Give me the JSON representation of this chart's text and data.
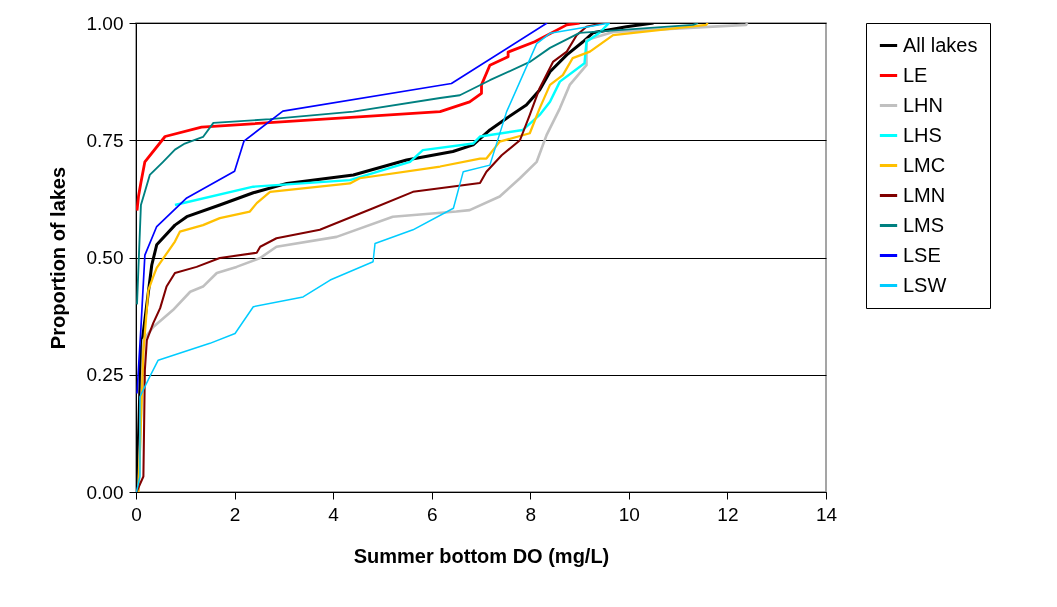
{
  "chart_data": {
    "type": "line",
    "xlabel": "Summer bottom DO (mg/L)",
    "ylabel": "Proportion of lakes",
    "xlim": [
      0,
      14
    ],
    "xticks": [
      0,
      2,
      4,
      6,
      8,
      10,
      12,
      14
    ],
    "ylim": [
      0,
      1
    ],
    "yticks": [
      {
        "value": 0,
        "label": "0.00"
      },
      {
        "value": 0.25,
        "label": "0.25"
      },
      {
        "value": 0.5,
        "label": "0.50"
      },
      {
        "value": 0.75,
        "label": "0.75"
      },
      {
        "value": 1,
        "label": "1.00"
      }
    ],
    "grid": "y",
    "legend": "right",
    "series": [
      {
        "name": "All lakes",
        "color": "#000000",
        "x": [
          0.02,
          0.1,
          0.32,
          0.42,
          0.79,
          1.03,
          1.7,
          2.38,
          3.06,
          4.41,
          5.49,
          6.43,
          6.84,
          7.18,
          7.52,
          7.92,
          8.19,
          8.4,
          8.74,
          9.07,
          9.27,
          9.95,
          10.5
        ],
        "values": [
          0,
          0.3,
          0.484,
          0.527,
          0.569,
          0.587,
          0.612,
          0.638,
          0.658,
          0.676,
          0.708,
          0.726,
          0.74,
          0.772,
          0.797,
          0.825,
          0.857,
          0.896,
          0.932,
          0.96,
          0.979,
          0.992,
          1
        ]
      },
      {
        "name": "LE",
        "color": "#ff0000",
        "x": [
          0.02,
          0.05,
          0.1,
          0.18,
          0.59,
          1.33,
          6.17,
          6.77,
          7.01,
          7.01,
          7.18,
          7.55,
          7.55,
          8.09,
          8.74,
          9.0
        ],
        "values": [
          0.6,
          0.63,
          0.66,
          0.704,
          0.758,
          0.778,
          0.811,
          0.832,
          0.85,
          0.868,
          0.91,
          0.928,
          0.938,
          0.96,
          0.996,
          1
        ]
      },
      {
        "name": "LHN",
        "color": "#c0c0c0",
        "x": [
          0.05,
          0.15,
          0.35,
          0.75,
          1.1,
          1.36,
          1.64,
          2.04,
          2.52,
          2.85,
          4.07,
          5.21,
          6.5,
          6.77,
          7.38,
          7.79,
          8.13,
          8.33,
          8.6,
          8.8,
          9.14,
          9.14,
          9.68,
          12.38,
          12.4
        ],
        "values": [
          0,
          0.324,
          0.352,
          0.388,
          0.427,
          0.438,
          0.467,
          0.48,
          0.499,
          0.523,
          0.544,
          0.587,
          0.598,
          0.601,
          0.63,
          0.669,
          0.704,
          0.761,
          0.818,
          0.868,
          0.91,
          0.964,
          0.981,
          0.996,
          1
        ]
      },
      {
        "name": "LHS",
        "color": "#00ffff",
        "x": [
          0.79,
          2.38,
          4.34,
          5.56,
          5.82,
          6.84,
          6.98,
          7.85,
          8.19,
          8.4,
          8.6,
          9.1,
          9.14,
          9.41,
          9.6
        ],
        "values": [
          0.612,
          0.651,
          0.665,
          0.704,
          0.729,
          0.743,
          0.758,
          0.772,
          0.804,
          0.832,
          0.875,
          0.914,
          0.96,
          0.98,
          1
        ]
      },
      {
        "name": "LMC",
        "color": "#ffc000",
        "x": [
          0.05,
          0.15,
          0.25,
          0.35,
          0.42,
          0.79,
          0.89,
          1.36,
          1.7,
          2.31,
          2.45,
          2.72,
          4.34,
          4.54,
          6.17,
          6.98,
          7.11,
          7.38,
          7.99,
          8.19,
          8.4,
          8.66,
          8.86,
          9.21,
          9.68,
          11.57,
          11.6
        ],
        "values": [
          0,
          0.3,
          0.43,
          0.459,
          0.478,
          0.534,
          0.555,
          0.569,
          0.584,
          0.598,
          0.616,
          0.64,
          0.658,
          0.669,
          0.694,
          0.711,
          0.711,
          0.747,
          0.765,
          0.818,
          0.868,
          0.889,
          0.925,
          0.939,
          0.974,
          0.996,
          1
        ]
      },
      {
        "name": "LMN",
        "color": "#800000",
        "x": [
          0.01,
          0.15,
          0.18,
          0.22,
          0.35,
          0.49,
          0.62,
          0.79,
          1.23,
          1.7,
          2.45,
          2.52,
          2.85,
          3.73,
          4.81,
          5.62,
          6.98,
          7.11,
          7.42,
          7.79,
          7.99,
          8.19,
          8.46,
          8.74,
          8.94,
          9.14,
          9.5
        ],
        "values": [
          0,
          0.033,
          0.26,
          0.324,
          0.36,
          0.392,
          0.438,
          0.467,
          0.48,
          0.499,
          0.51,
          0.523,
          0.541,
          0.559,
          0.605,
          0.64,
          0.659,
          0.683,
          0.718,
          0.75,
          0.804,
          0.861,
          0.917,
          0.939,
          0.974,
          0.992,
          1
        ]
      },
      {
        "name": "LMS",
        "color": "#008080",
        "x": [
          0.02,
          0.1,
          0.18,
          0.28,
          0.55,
          0.79,
          0.99,
          1.36,
          1.57,
          2.72,
          4.41,
          6.17,
          6.57,
          7.18,
          7.99,
          8.4,
          9.0,
          11.3,
          11.4
        ],
        "values": [
          0.4,
          0.612,
          0.64,
          0.676,
          0.704,
          0.73,
          0.743,
          0.757,
          0.787,
          0.795,
          0.811,
          0.84,
          0.846,
          0.878,
          0.917,
          0.947,
          0.979,
          0.996,
          1
        ]
      },
      {
        "name": "LSE",
        "color": "#0000ff",
        "x": [
          0.02,
          0.1,
          0.18,
          0.42,
          1.03,
          2.0,
          2.19,
          2.98,
          6.4,
          8.34
        ],
        "values": [
          0.21,
          0.35,
          0.505,
          0.566,
          0.627,
          0.684,
          0.748,
          0.812,
          0.871,
          1
        ]
      },
      {
        "name": "LSW",
        "color": "#00ccff",
        "x": [
          0.01,
          0.08,
          0.08,
          0.28,
          0.45,
          1.5,
          2.01,
          2.38,
          3.39,
          3.94,
          4.81,
          4.85,
          5.62,
          6.44,
          6.64,
          7.18,
          7.52,
          7.79,
          8.13,
          8.4,
          9.0,
          9.61
        ],
        "values": [
          0,
          0.033,
          0.203,
          0.246,
          0.281,
          0.317,
          0.338,
          0.395,
          0.416,
          0.452,
          0.491,
          0.53,
          0.559,
          0.605,
          0.683,
          0.697,
          0.811,
          0.875,
          0.956,
          0.978,
          0.989,
          1
        ]
      }
    ]
  }
}
